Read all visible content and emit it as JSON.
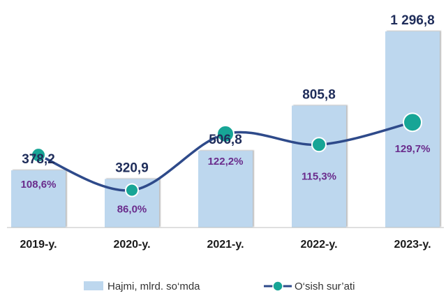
{
  "chart_data": {
    "type": "bar",
    "categories": [
      "2019-y.",
      "2020-y.",
      "2021-y.",
      "2022-y.",
      "2023-y."
    ],
    "series": [
      {
        "name": "Hajmi, mlrd. so‘mda",
        "type": "bar",
        "values": [
          378.2,
          320.9,
          506.8,
          805.8,
          1296.8
        ],
        "value_labels": [
          "378,2",
          "320,9",
          "506,8",
          "805,8",
          "1 296,8"
        ]
      },
      {
        "name": "O‘sish sur’ati",
        "type": "line",
        "values": [
          108.6,
          86.0,
          122.2,
          115.3,
          129.7
        ],
        "value_labels": [
          "108,6%",
          "86,0%",
          "122,2%",
          "115,3%",
          "129,7%"
        ]
      }
    ],
    "legend": "bottom",
    "grid": false,
    "colors": {
      "bar": "#bdd7ee",
      "line": "#2e4a8a",
      "marker": "#17a596",
      "value_text": "#1f2d5a",
      "rate_text": "#6a2c8c"
    }
  }
}
